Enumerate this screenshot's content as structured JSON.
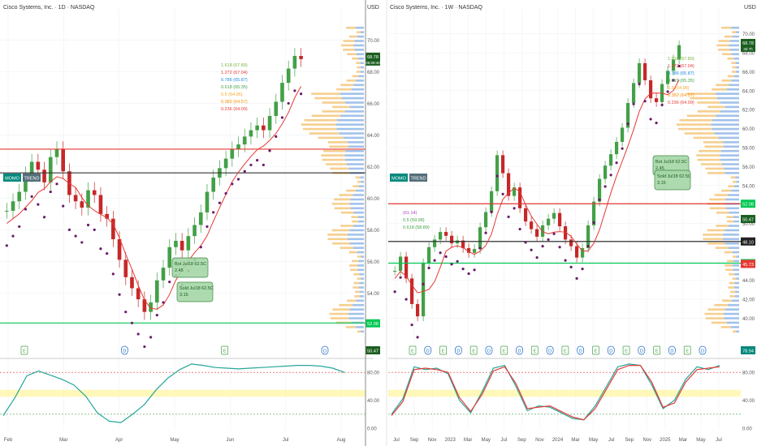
{
  "colors": {
    "up": "#43a047",
    "down": "#c62828",
    "blue": "#1565c0",
    "green_line": "#00c853",
    "red_line": "#e53935",
    "orange": "#f9a825",
    "purple": "#6a1b6a",
    "vp_blue": "#90b7e8",
    "vp_orange": "#f5c77a",
    "stoch_k": "#26a69a",
    "stoch_d": "#e53935",
    "stoch_band": "#fff59d"
  },
  "left_panel": {
    "title": "Cisco Systems, Inc. · 1D · NASDAQ",
    "tags": [
      "MOMO",
      "TREND"
    ],
    "fib_labels": [
      "1.618 (67.89)",
      "1.272 (67.04)",
      "0.786 (65.87)",
      "0.618 (65.35)",
      "0.5 (64.96)",
      "0.382 (64.57)",
      "0.236 (64.09)"
    ],
    "trade_boxes": [
      {
        "line1": "Bot Jul18 62.5C",
        "line2": "2.45"
      },
      {
        "line1": "Sold Jul18 62.5C",
        "line2": "3.15"
      }
    ],
    "price_label": "68.78",
    "price_sublabel": "06:09:40",
    "bottom_price_label": "52.08",
    "bottom_label_2": "50.47",
    "events": [
      "E",
      "D",
      "E",
      "D"
    ],
    "stoch_ticks": [
      "80.00",
      "40.00",
      "0.00"
    ]
  },
  "right_panel": {
    "title": "Cisco Systems, Inc. · 1W · NASDAQ",
    "currency": "USD",
    "tags": [
      "MOMO",
      "TREND"
    ],
    "fib_labels": [
      "1.618 (67.89)",
      "1.272 (67.04)",
      "0.786 (65.87)",
      "0.618 (65.35)",
      "0.5 (64.96)",
      "0.382 (64.57)",
      "0.236 (64.09)"
    ],
    "mid_labels": [
      "(61.14)",
      "0.5 (59.98)",
      "0.618 (58.89)"
    ],
    "trade_boxes": [
      {
        "line1": "Bot Jul18 62.5C",
        "line2": "2.45"
      },
      {
        "line1": "Sold Jul18 62.5C",
        "line2": "3.15"
      }
    ],
    "price_label": "68.78",
    "price_sublabel": "3d 7h",
    "axis_labels": [
      {
        "t": "52.08",
        "bg": "#00c853"
      },
      {
        "t": "50.47",
        "bg": "#1b5e20"
      },
      {
        "t": "48.10",
        "bg": "#222"
      },
      {
        "t": "45.81",
        "bg": "#00c853"
      },
      {
        "t": "45.73",
        "bg": "#e53935"
      }
    ],
    "bottom_label": "78.94",
    "stoch_ticks": [
      "80.00",
      "40.00",
      "0.00"
    ]
  },
  "chart_data": [
    {
      "type": "candlestick",
      "title": "Cisco Systems, Inc. · 1D · NASDAQ",
      "x_ticks": [
        "Feb",
        "Mar",
        "Apr",
        "May",
        "Jun",
        "Jul",
        "Aug"
      ],
      "y_ticks": [
        70,
        68,
        66,
        64,
        62,
        60,
        58,
        56,
        54,
        52
      ],
      "ylim": [
        51.5,
        71
      ],
      "series": [
        {
          "name": "close",
          "values": [
            59.2,
            59.8,
            60.4,
            61.5,
            62.3,
            61.8,
            61.0,
            62.6,
            63.1,
            61.7,
            60.2,
            59.8,
            59.4,
            60.5,
            60.2,
            59.0,
            58.7,
            57.4,
            56.1,
            55.0,
            54.3,
            53.6,
            52.8,
            53.4,
            54.8,
            55.6,
            56.9,
            57.3,
            56.7,
            57.6,
            58.3,
            59.1,
            60.4,
            61.3,
            61.9,
            62.5,
            63.1,
            63.4,
            63.9,
            64.3,
            64.6,
            64.3,
            65.2,
            66.1,
            67.3,
            68.2,
            69.0,
            68.8
          ]
        }
      ],
      "horizontal_levels": [
        63.1,
        61.6,
        52.1
      ]
    },
    {
      "type": "candlestick",
      "title": "Cisco Systems, Inc. · 1W · NASDAQ",
      "x_ticks": [
        "Jul",
        "Sep",
        "Nov",
        "2023",
        "Mar",
        "May",
        "Jul",
        "Sep",
        "Nov",
        "2024",
        "Mar",
        "May",
        "Jul",
        "Sep",
        "Nov",
        "2025",
        "Mar",
        "May",
        "Jul"
      ],
      "y_ticks": [
        70,
        68,
        66,
        64,
        62,
        60,
        58,
        56,
        54,
        52,
        50,
        48,
        46,
        44,
        42,
        40
      ],
      "ylim": [
        38.5,
        71
      ],
      "series": [
        {
          "name": "close",
          "values": [
            45,
            46.5,
            44.2,
            41.5,
            40.2,
            45.8,
            47.5,
            48.3,
            49.1,
            48.7,
            47.9,
            48.2,
            47.4,
            46.9,
            47.3,
            49.6,
            51.2,
            53.4,
            57.2,
            55.3,
            52.9,
            53.8,
            51.6,
            50.2,
            49.4,
            48.6,
            49.8,
            50.5,
            51.1,
            49.7,
            48.3,
            47.6,
            46.4,
            47.4,
            49.8,
            52.3,
            54.7,
            56.1,
            57.3,
            58.6,
            60.1,
            62.7,
            64.8,
            66.9,
            65.1,
            63.2,
            62.8,
            64.7,
            66.1,
            67.3,
            68.8
          ]
        }
      ],
      "horizontal_levels": [
        52.08,
        48.1,
        45.81
      ]
    },
    {
      "type": "line",
      "title": "",
      "ylim": [
        0,
        100
      ],
      "y_ticks": [
        80,
        40,
        0
      ],
      "series": [
        {
          "name": "",
          "values": [
            18,
            44,
            75,
            82,
            76,
            70,
            62,
            46,
            22,
            10,
            8,
            20,
            34,
            55,
            72,
            84,
            92,
            90,
            87,
            86,
            85,
            86,
            87,
            88,
            89,
            90,
            90,
            89,
            86,
            80
          ]
        }
      ]
    },
    {
      "type": "line",
      "title": "",
      "ylim": [
        0,
        100
      ],
      "y_ticks": [
        80,
        40,
        0
      ],
      "series": [
        {
          "name": "",
          "values": [
            20,
            42,
            88,
            84,
            86,
            78,
            40,
            22,
            52,
            86,
            90,
            60,
            25,
            32,
            30,
            22,
            14,
            12,
            32,
            60,
            88,
            92,
            90,
            62,
            28,
            40,
            70,
            88,
            84,
            90
          ]
        },
        {
          "name": "",
          "values": [
            18,
            38,
            84,
            86,
            84,
            80,
            44,
            24,
            48,
            82,
            88,
            64,
            28,
            30,
            32,
            24,
            16,
            12,
            28,
            56,
            84,
            90,
            90,
            66,
            30,
            36,
            66,
            84,
            86,
            88
          ]
        }
      ]
    }
  ]
}
